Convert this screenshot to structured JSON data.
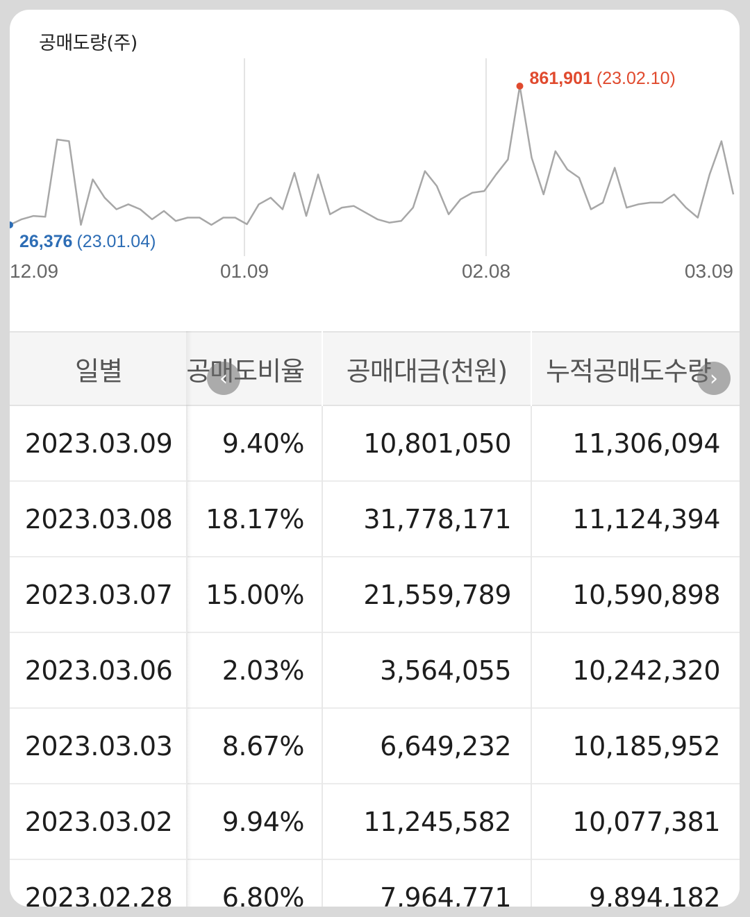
{
  "chart_data": {
    "type": "line",
    "title": "공매도량(주)",
    "x_ticks": [
      "12.09",
      "01.09",
      "02.08",
      "03.09"
    ],
    "series": [
      {
        "values": [
          26000,
          60000,
          80000,
          75000,
          540000,
          530000,
          26376,
          300000,
          190000,
          120000,
          150000,
          120000,
          60000,
          110000,
          50000,
          70000,
          70000,
          26376,
          70000,
          70000,
          30000,
          150000,
          190000,
          120000,
          340000,
          80000,
          330000,
          90000,
          130000,
          140000,
          100000,
          60000,
          40000,
          50000,
          130000,
          350000,
          260000,
          90000,
          180000,
          220000,
          230000,
          330000,
          420000,
          861901,
          430000,
          210000,
          470000,
          360000,
          310000,
          120000,
          160000,
          370000,
          130000,
          150000,
          160000,
          160000,
          210000,
          130000,
          70000,
          330000,
          530000,
          210000
        ]
      }
    ],
    "max_point": {
      "value": "861,901",
      "date": "(23.02.10)"
    },
    "min_point": {
      "value": "26,376",
      "date": "(23.01.04)"
    },
    "colors": {
      "line": "#a7a7a7",
      "max": "#e04a2e",
      "min": "#2d6db5",
      "grid": "#e4e4e4"
    }
  },
  "table": {
    "headers": [
      "일별",
      "공매도비율",
      "공매대금(천원)",
      "누적공매도수량"
    ],
    "rows": [
      [
        "2023.03.09",
        "9.40%",
        "10,801,050",
        "11,306,094"
      ],
      [
        "2023.03.08",
        "18.17%",
        "31,778,171",
        "11,124,394"
      ],
      [
        "2023.03.07",
        "15.00%",
        "21,559,789",
        "10,590,898"
      ],
      [
        "2023.03.06",
        "2.03%",
        "3,564,055",
        "10,242,320"
      ],
      [
        "2023.03.03",
        "8.67%",
        "6,649,232",
        "10,185,952"
      ],
      [
        "2023.03.02",
        "9.94%",
        "11,245,582",
        "10,077,381"
      ],
      [
        "2023.02.28",
        "6.80%",
        "7,964,771",
        "9,894,182"
      ]
    ]
  },
  "scroll": {
    "left_icon": "chevron-left-icon",
    "right_icon": "chevron-right-icon"
  }
}
